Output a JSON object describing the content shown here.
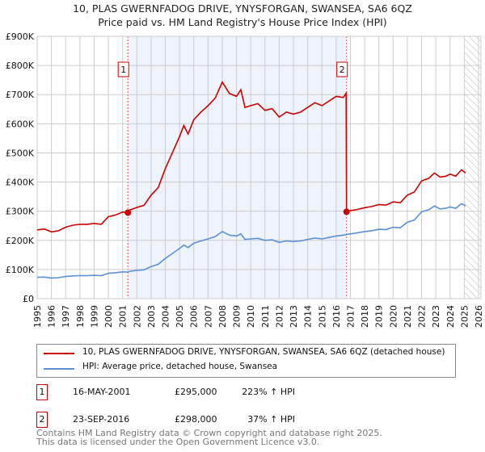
{
  "title": "10, PLAS GWERNFADOG DRIVE, YNYSFORGAN, SWANSEA, SA6 6QZ",
  "subtitle": "Price paid vs. HM Land Registry's House Price Index (HPI)",
  "colors": {
    "property": "#cc0000",
    "hpi": "#5b8fd6",
    "shade": "#eef3fc"
  },
  "chart_data": {
    "type": "line",
    "xlim": [
      1995,
      2026
    ],
    "ylim": [
      0,
      900000
    ],
    "yticks": [
      0,
      100000,
      200000,
      300000,
      400000,
      500000,
      600000,
      700000,
      800000,
      900000
    ],
    "ytick_labels": [
      "£0",
      "£100K",
      "£200K",
      "£300K",
      "£400K",
      "£500K",
      "£600K",
      "£700K",
      "£800K",
      "£900K"
    ],
    "xticks": [
      1995,
      1996,
      1997,
      1998,
      1999,
      2000,
      2001,
      2002,
      2003,
      2004,
      2005,
      2006,
      2007,
      2008,
      2009,
      2010,
      2011,
      2012,
      2013,
      2014,
      2015,
      2016,
      2017,
      2018,
      2019,
      2020,
      2021,
      2022,
      2023,
      2024,
      2025,
      2026
    ],
    "forecast_from": 2025,
    "series": [
      {
        "name": "10, PLAS GWERNFADOG DRIVE, YNYSFORGAN, SWANSEA, SA6 6QZ (detached house)",
        "x": [
          1995,
          1995.5,
          1996,
          1996.5,
          1997,
          1997.5,
          1998,
          1998.5,
          1999,
          1999.5,
          2000,
          2000.5,
          2001,
          2001.37,
          2001.5,
          2002,
          2002.5,
          2003,
          2003.5,
          2004,
          2004.5,
          2005,
          2005.3,
          2005.6,
          2006,
          2006.5,
          2007,
          2007.5,
          2008,
          2008.5,
          2009,
          2009.3,
          2009.6,
          2010,
          2010.5,
          2011,
          2011.5,
          2012,
          2012.5,
          2013,
          2013.5,
          2014,
          2014.5,
          2015,
          2015.5,
          2016,
          2016.5,
          2016.7,
          2016.73,
          2017,
          2017.5,
          2018,
          2018.5,
          2019,
          2019.5,
          2020,
          2020.5,
          2021,
          2021.5,
          2022,
          2022.5,
          2022.9,
          2023.3,
          2023.7,
          2024,
          2024.4,
          2024.8,
          2025.1
        ],
        "y": [
          236,
          239,
          229,
          233,
          245,
          252,
          255,
          255,
          258,
          255,
          281,
          287,
          297,
          295,
          304,
          313,
          320,
          355,
          381,
          446,
          501,
          556,
          594,
          565,
          614,
          640,
          662,
          688,
          743,
          704,
          694,
          717,
          656,
          662,
          669,
          646,
          652,
          623,
          640,
          633,
          640,
          656,
          672,
          662,
          678,
          694,
          690,
          705,
          298,
          302,
          306,
          312,
          316,
          323,
          321,
          332,
          329,
          355,
          366,
          404,
          413,
          431,
          417,
          420,
          427,
          420,
          442,
          431
        ]
      },
      {
        "name": "HPI: Average price, detached house, Swansea",
        "x": [
          1995,
          1995.5,
          1996,
          1996.5,
          1997,
          1997.5,
          1998,
          1998.5,
          1999,
          1999.5,
          2000,
          2000.5,
          2001,
          2001.37,
          2001.5,
          2002,
          2002.5,
          2003,
          2003.5,
          2004,
          2004.5,
          2005,
          2005.3,
          2005.6,
          2006,
          2006.5,
          2007,
          2007.5,
          2008,
          2008.5,
          2009,
          2009.3,
          2009.6,
          2010,
          2010.5,
          2011,
          2011.5,
          2012,
          2012.5,
          2013,
          2013.5,
          2014,
          2014.5,
          2015,
          2015.5,
          2016,
          2016.5,
          2016.73,
          2017,
          2017.5,
          2018,
          2018.5,
          2019,
          2019.5,
          2020,
          2020.5,
          2021,
          2021.5,
          2022,
          2022.5,
          2022.9,
          2023.3,
          2023.7,
          2024,
          2024.4,
          2024.8,
          2025.1
        ],
        "y": [
          73,
          74,
          71,
          72,
          76,
          78,
          79,
          79,
          80,
          79,
          87,
          89,
          92,
          91,
          94,
          97,
          99,
          110,
          118,
          138,
          155,
          172,
          184,
          175,
          190,
          198,
          205,
          213,
          230,
          218,
          215,
          222,
          203,
          205,
          207,
          200,
          202,
          193,
          198,
          196,
          198,
          203,
          208,
          205,
          210,
          215,
          218,
          220,
          222,
          226,
          230,
          233,
          238,
          237,
          245,
          243,
          262,
          270,
          298,
          305,
          318,
          308,
          310,
          315,
          310,
          326,
          318
        ]
      }
    ],
    "y_unit": "thousand GBP",
    "sales": [
      {
        "label": "1",
        "x": 2001.37,
        "y": 295
      },
      {
        "label": "2",
        "x": 2016.73,
        "y": 298
      }
    ]
  },
  "legend": {
    "property": "10, PLAS GWERNFADOG DRIVE, YNYSFORGAN, SWANSEA, SA6 6QZ (detached house)",
    "hpi": "HPI: Average price, detached house, Swansea"
  },
  "transactions": [
    {
      "num": "1",
      "date": "16-MAY-2001",
      "price": "£295,000",
      "hpi": "223% ↑ HPI"
    },
    {
      "num": "2",
      "date": "23-SEP-2016",
      "price": "£298,000",
      "hpi": "37% ↑ HPI"
    }
  ],
  "footer": {
    "line1": "Contains HM Land Registry data © Crown copyright and database right 2025.",
    "line2": "This data is licensed under the Open Government Licence v3.0."
  }
}
